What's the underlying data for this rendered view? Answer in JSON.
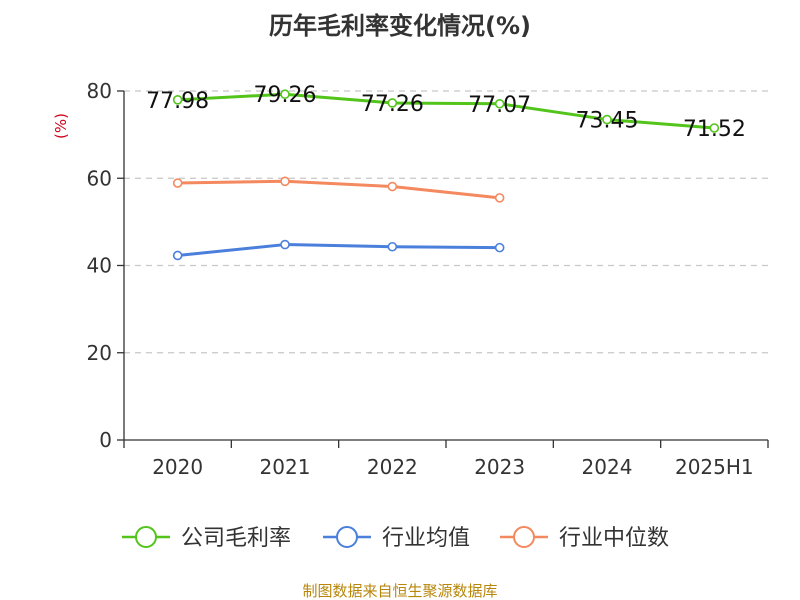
{
  "chart_data": {
    "type": "line",
    "title": "历年毛利率变化情况(%)",
    "ylabel": "(%)",
    "xlabel": "",
    "categories": [
      "2020",
      "2021",
      "2022",
      "2023",
      "2024",
      "2025H1"
    ],
    "ylim": [
      0,
      80
    ],
    "yticks": [
      0,
      20,
      40,
      60,
      80
    ],
    "grid": true,
    "legend_position": "bottom",
    "series": [
      {
        "name": "公司毛利率",
        "color": "#52c41a",
        "values": [
          77.98,
          79.26,
          77.26,
          77.07,
          73.45,
          71.52
        ],
        "labels": [
          "77.98",
          "79.26",
          "77.26",
          "77.07",
          "73.45",
          "71.52"
        ],
        "show_labels": true
      },
      {
        "name": "行业均值",
        "color": "#4a7fdc",
        "values": [
          42.3,
          44.8,
          44.3,
          44.1,
          null,
          null
        ],
        "show_labels": false
      },
      {
        "name": "行业中位数",
        "color": "#f4895f",
        "values": [
          58.9,
          59.3,
          58.1,
          55.5,
          null,
          null
        ],
        "show_labels": false
      }
    ]
  },
  "source": "制图数据来自恒生聚源数据库"
}
